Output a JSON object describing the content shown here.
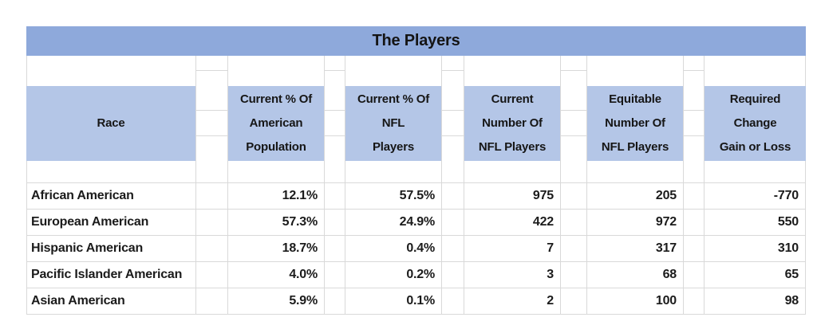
{
  "title": "The Players",
  "columns": {
    "race": "Race",
    "pop_pct": "Current % Of\nAmerican\nPopulation",
    "nfl_pct": "Current % Of\nNFL\nPlayers",
    "current_num": "Current\nNumber Of\nNFL Players",
    "equitable_num": "Equitable\nNumber Of\nNFL Players",
    "required_change": "Required\nChange\nGain or Loss"
  },
  "rows": [
    {
      "race": "African American",
      "pop_pct": "12.1%",
      "nfl_pct": "57.5%",
      "current_num": "975",
      "equitable_num": "205",
      "required_change": "-770"
    },
    {
      "race": "European American",
      "pop_pct": "57.3%",
      "nfl_pct": "24.9%",
      "current_num": "422",
      "equitable_num": "972",
      "required_change": "550"
    },
    {
      "race": "Hispanic American",
      "pop_pct": "18.7%",
      "nfl_pct": "0.4%",
      "current_num": "7",
      "equitable_num": "317",
      "required_change": "310"
    },
    {
      "race": "Pacific Islander American",
      "pop_pct": "4.0%",
      "nfl_pct": "0.2%",
      "current_num": "3",
      "equitable_num": "68",
      "required_change": "65"
    },
    {
      "race": "Asian American",
      "pop_pct": "5.9%",
      "nfl_pct": "0.1%",
      "current_num": "2",
      "equitable_num": "100",
      "required_change": "98"
    }
  ],
  "colors": {
    "title_band": "#8EA9DB",
    "header_cell": "#B4C6E7",
    "gridline": "#D9D9D9",
    "text": "#1B1B1B"
  }
}
